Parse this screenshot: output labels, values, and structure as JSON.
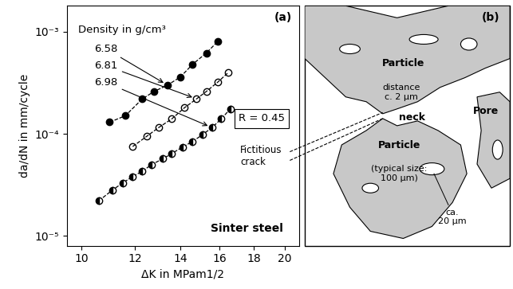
{
  "chart_data": {
    "type": "scatter",
    "panel_label": "(a)",
    "x_label": "ΔK in MPam1/2",
    "y_label": "da/dN in mm/cycle",
    "log": true,
    "xlim": [
      9.5,
      21
    ],
    "ylim": [
      8e-06,
      0.0018
    ],
    "xticks": [
      10,
      12,
      14,
      16,
      18,
      20
    ],
    "yticks": [
      {
        "value": 1e-05,
        "label": "10⁻⁵"
      },
      {
        "value": 0.0001,
        "label": "10⁻⁴"
      },
      {
        "value": 0.001,
        "label": "10⁻³"
      }
    ],
    "series_title": "Density in g/cm³",
    "box_text": "R = 0.45",
    "note": "Sinter steel",
    "series": [
      {
        "name": "6.58",
        "color": "#000000",
        "marker": "filled_circle",
        "line_style": "dashed",
        "x": [
          11.0,
          11.6,
          12.3,
          12.8,
          13.4,
          14.0,
          14.6,
          15.3,
          15.9
        ],
        "values": [
          0.00013,
          0.00015,
          0.00022,
          0.00026,
          0.0003,
          0.00036,
          0.00048,
          0.00062,
          0.0008
        ]
      },
      {
        "name": "6.81",
        "color": "#000000",
        "marker": "open_circle",
        "line_style": "dashed",
        "x": [
          11.9,
          12.5,
          13.0,
          13.6,
          14.2,
          14.8,
          15.3,
          15.9,
          16.5
        ],
        "values": [
          7.5e-05,
          9.5e-05,
          0.000115,
          0.00014,
          0.00018,
          0.00022,
          0.00026,
          0.00032,
          0.0004
        ]
      },
      {
        "name": "6.98",
        "color": "#000000",
        "marker": "half_filled_circle",
        "line_style": "dashed",
        "x": [
          10.6,
          11.1,
          11.5,
          11.9,
          12.3,
          12.7,
          13.2,
          13.6,
          14.1,
          14.6,
          15.1,
          15.6,
          16.1,
          16.6
        ],
        "values": [
          2.2e-05,
          2.8e-05,
          3.3e-05,
          3.8e-05,
          4.3e-05,
          5e-05,
          5.7e-05,
          6.4e-05,
          7.4e-05,
          8.4e-05,
          9.8e-05,
          0.000115,
          0.00014,
          0.000175
        ]
      }
    ]
  },
  "diagram": {
    "panel_label": "(b)",
    "crack_label": "Fictitious\ncrack",
    "labels": {
      "particle_top": "Particle",
      "distance": "distance\nc. 2 µm",
      "neck": "neck",
      "particle_bottom": "Particle",
      "typical_size": "(typical size:\n100 µm)",
      "pore": "Pore",
      "pore_size": "ca.\n20 µm"
    }
  }
}
